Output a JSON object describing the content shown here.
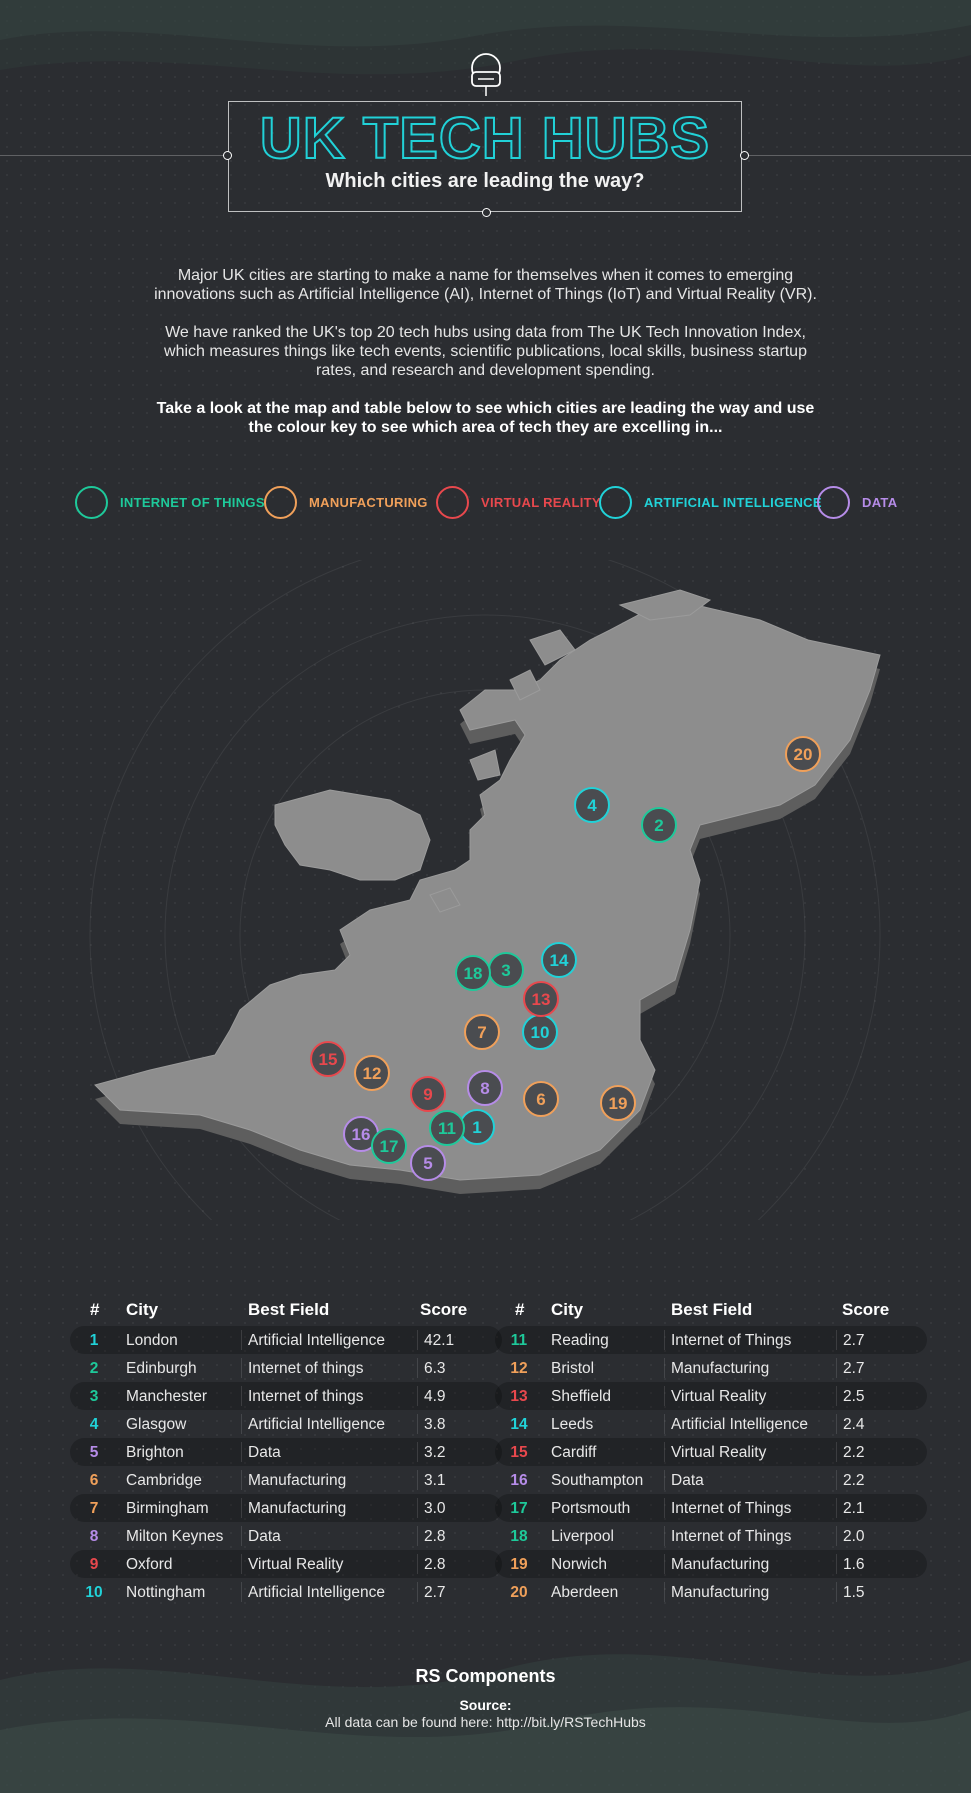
{
  "header": {
    "title": "UK TECH HUBS",
    "subtitle": "Which cities are leading the way?",
    "headset_icon": "vr-headset-icon"
  },
  "intro": {
    "p1_line1": "Major UK cities are starting to make a name for themselves when it comes to emerging",
    "p1_line2": "innovations such as Artificial Intelligence (AI), Internet of Things (IoT) and Virtual Reality (VR).",
    "p2_line1": "We have ranked the UK's top 20 tech hubs using data from The UK Tech Innovation Index,",
    "p2_line2": "which measures things like tech events, scientific publications, local skills, business startup",
    "p2_line3": "rates, and research and development spending.",
    "p3_line1": "Take a look at the map and table below to see which cities are leading the way and use",
    "p3_line2": "the colour key to see which area of tech they are excelling in..."
  },
  "colors": {
    "iot": "#1ec99a",
    "manufacturing": "#f0a05a",
    "vr": "#e8484d",
    "ai": "#21d2d8",
    "data": "#b68ce8",
    "background": "#2b2d31",
    "land": "#8d8d8d"
  },
  "legend": [
    {
      "label": "INTERNET OF THINGS",
      "category": "iot"
    },
    {
      "label": "MANUFACTURING",
      "category": "manufacturing"
    },
    {
      "label": "VIRTUAL REALITY",
      "category": "vr"
    },
    {
      "label": "ARTIFICIAL INTELLIGENCE",
      "category": "ai"
    },
    {
      "label": "DATA",
      "category": "data"
    }
  ],
  "map_markers": [
    {
      "rank": "1",
      "category": "ai"
    },
    {
      "rank": "2",
      "category": "iot"
    },
    {
      "rank": "3",
      "category": "iot"
    },
    {
      "rank": "4",
      "category": "ai"
    },
    {
      "rank": "5",
      "category": "data"
    },
    {
      "rank": "6",
      "category": "manufacturing"
    },
    {
      "rank": "7",
      "category": "manufacturing"
    },
    {
      "rank": "8",
      "category": "data"
    },
    {
      "rank": "9",
      "category": "vr"
    },
    {
      "rank": "10",
      "category": "ai"
    },
    {
      "rank": "11",
      "category": "iot"
    },
    {
      "rank": "12",
      "category": "manufacturing"
    },
    {
      "rank": "13",
      "category": "vr"
    },
    {
      "rank": "14",
      "category": "ai"
    },
    {
      "rank": "15",
      "category": "vr"
    },
    {
      "rank": "16",
      "category": "data"
    },
    {
      "rank": "17",
      "category": "iot"
    },
    {
      "rank": "18",
      "category": "iot"
    },
    {
      "rank": "19",
      "category": "manufacturing"
    },
    {
      "rank": "20",
      "category": "manufacturing"
    }
  ],
  "table": {
    "headers": {
      "rank": "#",
      "city": "City",
      "field": "Best Field",
      "score": "Score"
    },
    "left": [
      {
        "rank": "1",
        "city": "London",
        "field": "Artificial Intelligence",
        "score": "42.1",
        "category": "ai"
      },
      {
        "rank": "2",
        "city": "Edinburgh",
        "field": "Internet of things",
        "score": "6.3",
        "category": "iot"
      },
      {
        "rank": "3",
        "city": "Manchester",
        "field": "Internet of things",
        "score": "4.9",
        "category": "iot"
      },
      {
        "rank": "4",
        "city": "Glasgow",
        "field": "Artificial Intelligence",
        "score": "3.8",
        "category": "ai"
      },
      {
        "rank": "5",
        "city": "Brighton",
        "field": "Data",
        "score": "3.2",
        "category": "data"
      },
      {
        "rank": "6",
        "city": "Cambridge",
        "field": "Manufacturing",
        "score": "3.1",
        "category": "manufacturing"
      },
      {
        "rank": "7",
        "city": "Birmingham",
        "field": "Manufacturing",
        "score": "3.0",
        "category": "manufacturing"
      },
      {
        "rank": "8",
        "city": "Milton Keynes",
        "field": "Data",
        "score": "2.8",
        "category": "data"
      },
      {
        "rank": "9",
        "city": "Oxford",
        "field": "Virtual Reality",
        "score": "2.8",
        "category": "vr"
      },
      {
        "rank": "10",
        "city": "Nottingham",
        "field": "Artificial Intelligence",
        "score": "2.7",
        "category": "ai"
      }
    ],
    "right": [
      {
        "rank": "11",
        "city": "Reading",
        "field": "Internet of Things",
        "score": "2.7",
        "category": "iot"
      },
      {
        "rank": "12",
        "city": "Bristol",
        "field": "Manufacturing",
        "score": "2.7",
        "category": "manufacturing"
      },
      {
        "rank": "13",
        "city": "Sheffield",
        "field": "Virtual Reality",
        "score": "2.5",
        "category": "vr"
      },
      {
        "rank": "14",
        "city": "Leeds",
        "field": "Artificial Intelligence",
        "score": "2.4",
        "category": "ai"
      },
      {
        "rank": "15",
        "city": "Cardiff",
        "field": "Virtual Reality",
        "score": "2.2",
        "category": "vr"
      },
      {
        "rank": "16",
        "city": "Southampton",
        "field": "Data",
        "score": "2.2",
        "category": "data"
      },
      {
        "rank": "17",
        "city": "Portsmouth",
        "field": "Internet of Things",
        "score": "2.1",
        "category": "iot"
      },
      {
        "rank": "18",
        "city": "Liverpool",
        "field": "Internet of Things",
        "score": "2.0",
        "category": "iot"
      },
      {
        "rank": "19",
        "city": "Norwich",
        "field": "Manufacturing",
        "score": "1.6",
        "category": "manufacturing"
      },
      {
        "rank": "20",
        "city": "Aberdeen",
        "field": "Manufacturing",
        "score": "1.5",
        "category": "manufacturing"
      }
    ]
  },
  "footer": {
    "brand": "RS Components",
    "source_label": "Source:",
    "source_text": "All data can be found here: http://bit.ly/RSTechHubs"
  }
}
